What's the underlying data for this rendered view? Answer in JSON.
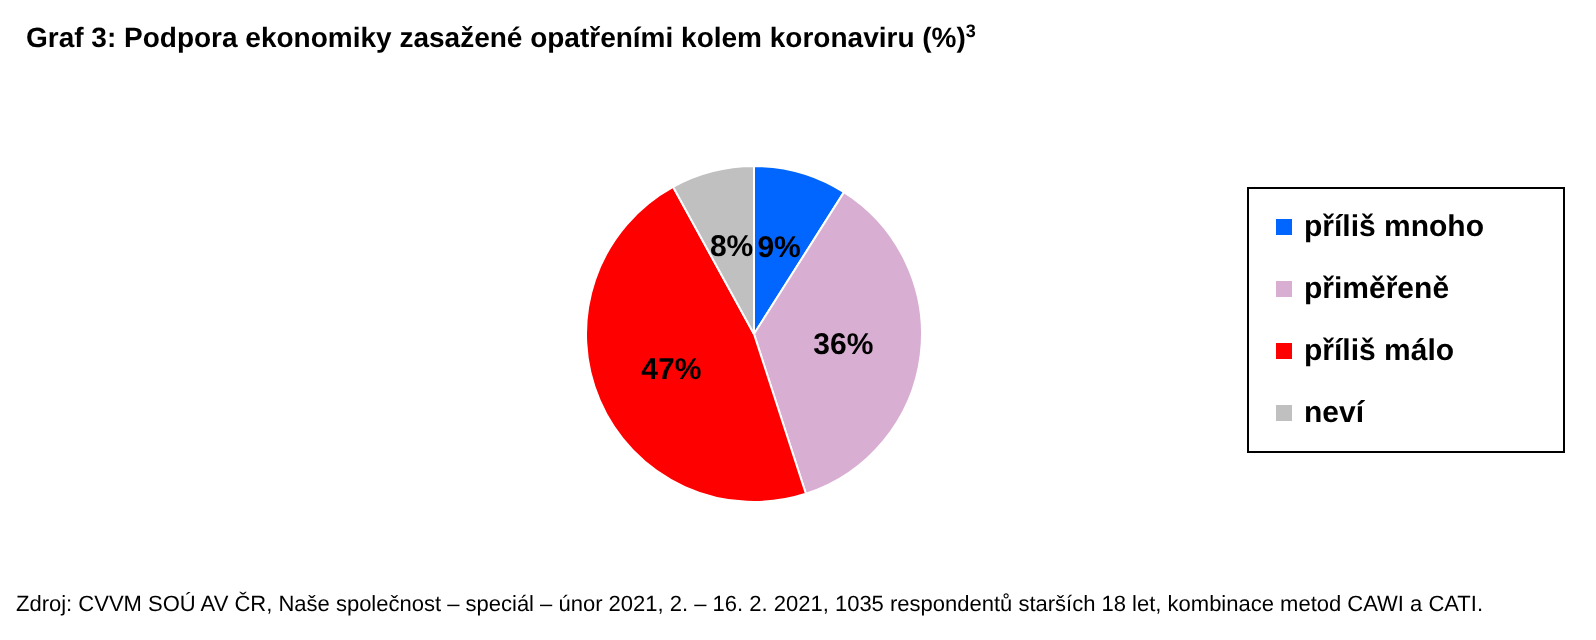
{
  "chart_data": {
    "type": "pie",
    "title": "Graf 3: Podpora ekonomiky zasažené opatřeními kolem koronaviru (%)$^{3}$",
    "categories": [
      "příliš mnoho",
      "přiměřeně",
      "příliš málo",
      "neví"
    ],
    "values": [
      9,
      36,
      47,
      8
    ],
    "colors": [
      "#0066ff",
      "#d9aed3",
      "#ff0000",
      "#c0c0c0"
    ],
    "value_labels": [
      "9%",
      "36%",
      "47%",
      "8%"
    ],
    "legend": "right",
    "annotations": [
      "Zdroj: CVVM SOÚ AV ČR, Naše společnost – speciál – únor 2021, 2. – 16. 2. 2021, 1035 respondentů starších 18 let, kombinace metod CAWI a CATI."
    ]
  }
}
